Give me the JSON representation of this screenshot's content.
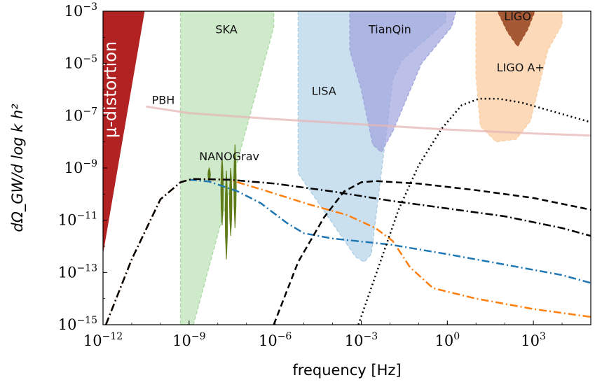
{
  "chart_data": {
    "type": "line",
    "xlabel": "frequency [Hz]",
    "ylabel": "dΩ_GW/d log k h²",
    "x_scale": "log",
    "y_scale": "log",
    "xlim": [
      1e-12,
      100000.0
    ],
    "ylim": [
      1e-15,
      0.001
    ],
    "x_ticks": [
      {
        "base": "10",
        "exp": "−12",
        "value": 1e-12
      },
      {
        "base": "10",
        "exp": "−9",
        "value": 1e-09
      },
      {
        "base": "10",
        "exp": "−6",
        "value": 1e-06
      },
      {
        "base": "10",
        "exp": "−3",
        "value": 0.001
      },
      {
        "base": "10",
        "exp": "0",
        "value": 1
      },
      {
        "base": "10",
        "exp": "3",
        "value": 1000.0
      }
    ],
    "y_ticks": [
      {
        "base": "10",
        "exp": "−3",
        "value": 0.001
      },
      {
        "base": "10",
        "exp": "−5",
        "value": 1e-05
      },
      {
        "base": "10",
        "exp": "−7",
        "value": 1e-07
      },
      {
        "base": "10",
        "exp": "−9",
        "value": 1e-09
      },
      {
        "base": "10",
        "exp": "−11",
        "value": 1e-11
      },
      {
        "base": "10",
        "exp": "−13",
        "value": 1e-13
      },
      {
        "base": "10",
        "exp": "−15",
        "value": 1e-15
      }
    ],
    "regions": [
      {
        "label": "μ-distortion",
        "color": "#b22222",
        "opacity": 1.0,
        "points": [
          [
            -12,
            -3
          ],
          [
            -10.55,
            -3
          ],
          [
            -12,
            -12.3
          ]
        ]
      },
      {
        "label": "SKA",
        "color": "#a8d8a0",
        "opacity": 0.55,
        "points": [
          [
            -9.3,
            -3
          ],
          [
            -6.05,
            -3
          ],
          [
            -6.05,
            -3.6
          ],
          [
            -8.85,
            -15
          ],
          [
            -9.3,
            -15
          ]
        ]
      },
      {
        "label": "LISA",
        "color": "#a8cce4",
        "opacity": 0.6,
        "points": [
          [
            -5.2,
            -3
          ],
          [
            -0.05,
            -3
          ],
          [
            -0.05,
            -3.4
          ],
          [
            -1.6,
            -4.9
          ],
          [
            -1.9,
            -5.6
          ],
          [
            -2.65,
            -12.3
          ],
          [
            -2.9,
            -12.6
          ],
          [
            -3.2,
            -12.4
          ],
          [
            -5.2,
            -9.2
          ]
        ]
      },
      {
        "label": "TianQin",
        "color": "#9fa4dd",
        "opacity": 0.7,
        "points": [
          [
            -3.4,
            -3
          ],
          [
            0.3,
            -3
          ],
          [
            0.15,
            -3.6
          ],
          [
            -0.9,
            -5.0
          ],
          [
            -1.9,
            -7.6
          ],
          [
            -2.3,
            -8.4
          ],
          [
            -2.6,
            -8.1
          ],
          [
            -3.0,
            -6.0
          ],
          [
            -3.4,
            -4.5
          ]
        ]
      },
      {
        "label": "LIGO A+",
        "color": "#fbcfa6",
        "opacity": 0.8,
        "points": [
          [
            1.0,
            -3
          ],
          [
            4.0,
            -3
          ],
          [
            4.0,
            -3.5
          ],
          [
            3.5,
            -4.5
          ],
          [
            2.9,
            -7.2
          ],
          [
            2.4,
            -7.9
          ],
          [
            1.7,
            -8.0
          ],
          [
            1.15,
            -7.4
          ],
          [
            1.0,
            -5.5
          ]
        ]
      },
      {
        "label": "LIGO",
        "color": "#a0522d",
        "opacity": 0.95,
        "points": [
          [
            1.75,
            -3
          ],
          [
            3.05,
            -3
          ],
          [
            2.8,
            -3.7
          ],
          [
            2.45,
            -4.35
          ],
          [
            2.1,
            -3.8
          ]
        ]
      }
    ],
    "nanograv": {
      "label": "NANOGrav",
      "color": "#5f7a18",
      "bars": [
        {
          "x": -8.3,
          "ymin": -9.5,
          "ymax": -9.0
        },
        {
          "x": -7.85,
          "ymin": -11.2,
          "ymax": -8.6
        },
        {
          "x": -7.7,
          "ymin": -12.5,
          "ymax": -9.1
        },
        {
          "x": -7.55,
          "ymin": -11.6,
          "ymax": -9.0
        },
        {
          "x": -7.4,
          "ymin": -11.3,
          "ymax": -8.1
        }
      ]
    },
    "series": [
      {
        "label": "PBH",
        "color": "#e6b5b5",
        "style": "solid",
        "width": 3,
        "points": [
          [
            -10.5,
            -6.65
          ],
          [
            -9,
            -6.9
          ],
          [
            -6,
            -7.13
          ],
          [
            -3,
            -7.33
          ],
          [
            0,
            -7.53
          ],
          [
            3,
            -7.68
          ],
          [
            5,
            -7.76
          ]
        ]
      },
      {
        "color": "#ff7f0e",
        "style": "dashdot",
        "width": 2.5,
        "points": [
          [
            -11.9,
            -15
          ],
          [
            -11.0,
            -12.5
          ],
          [
            -10.0,
            -10.2
          ],
          [
            -9.3,
            -9.55
          ],
          [
            -8.9,
            -9.42
          ],
          [
            -7.6,
            -9.45
          ],
          [
            -6.4,
            -9.85
          ],
          [
            -4.8,
            -10.4
          ],
          [
            -3.5,
            -10.8
          ],
          [
            -2.5,
            -11.3
          ],
          [
            -1.9,
            -11.8
          ],
          [
            -1.3,
            -12.8
          ],
          [
            -0.5,
            -13.6
          ],
          [
            1,
            -14.0
          ],
          [
            3,
            -14.4
          ],
          [
            5,
            -14.7
          ]
        ]
      },
      {
        "color": "#1f77b4",
        "style": "dashdot",
        "width": 2.5,
        "points": [
          [
            -9.0,
            -9.45
          ],
          [
            -8.3,
            -9.52
          ],
          [
            -7.3,
            -9.9
          ],
          [
            -6.5,
            -10.35
          ],
          [
            -5.6,
            -11.1
          ],
          [
            -5.0,
            -11.5
          ],
          [
            -4.0,
            -11.7
          ],
          [
            -2.0,
            -11.93
          ],
          [
            0,
            -12.3
          ],
          [
            2,
            -12.7
          ],
          [
            4,
            -13.1
          ],
          [
            5,
            -13.4
          ]
        ]
      },
      {
        "color": "#000000",
        "style": "dashdot",
        "width": 2.5,
        "points": [
          [
            -11.9,
            -15
          ],
          [
            -11.0,
            -12.5
          ],
          [
            -10.0,
            -10.2
          ],
          [
            -9.3,
            -9.55
          ],
          [
            -8.9,
            -9.42
          ],
          [
            -7.6,
            -9.45
          ],
          [
            -6.0,
            -9.6
          ],
          [
            -4.0,
            -9.9
          ],
          [
            -2.0,
            -10.25
          ],
          [
            0,
            -10.55
          ],
          [
            2,
            -10.85
          ],
          [
            4,
            -11.3
          ],
          [
            5,
            -11.6
          ]
        ]
      },
      {
        "color": "#000000",
        "style": "dashed",
        "width": 2.5,
        "points": [
          [
            -6.05,
            -15
          ],
          [
            -5.2,
            -12.6
          ],
          [
            -4.3,
            -10.9
          ],
          [
            -3.6,
            -9.9
          ],
          [
            -3.0,
            -9.55
          ],
          [
            -2.5,
            -9.5
          ],
          [
            -1.0,
            -9.6
          ],
          [
            1.0,
            -9.85
          ],
          [
            3.0,
            -10.15
          ],
          [
            5,
            -10.6
          ]
        ]
      },
      {
        "color": "#000000",
        "style": "dotted",
        "width": 2.5,
        "points": [
          [
            -3.1,
            -15
          ],
          [
            -2.4,
            -12.8
          ],
          [
            -1.7,
            -10.6
          ],
          [
            -1.0,
            -8.9
          ],
          [
            -0.2,
            -7.5
          ],
          [
            0.5,
            -6.6
          ],
          [
            1.1,
            -6.35
          ],
          [
            1.8,
            -6.35
          ],
          [
            2.6,
            -6.5
          ],
          [
            3.4,
            -6.75
          ],
          [
            4.2,
            -7.0
          ],
          [
            5,
            -7.25
          ]
        ]
      }
    ],
    "annotations": [
      {
        "text": "μ-distortion",
        "x": -11.55,
        "y": -6.0,
        "rotate": -90,
        "color": "#ffffff",
        "size": 24
      },
      {
        "text": "SKA",
        "x": -7.7,
        "y": -3.85,
        "color": "#111111",
        "size": 16
      },
      {
        "text": "TianQin",
        "x": -2.0,
        "y": -3.85,
        "color": "#111111",
        "size": 16
      },
      {
        "text": "LISA",
        "x": -4.3,
        "y": -6.2,
        "color": "#111111",
        "size": 16
      },
      {
        "text": "LIGO",
        "x": 2.45,
        "y": -3.35,
        "color": "#111111",
        "size": 16
      },
      {
        "text": "LIGO A+",
        "x": 2.55,
        "y": -5.3,
        "color": "#111111",
        "size": 16
      },
      {
        "text": "PBH",
        "x": -9.9,
        "y": -6.55,
        "color": "#111111",
        "size": 16
      },
      {
        "text": "NANOGrav",
        "x": -7.6,
        "y": -8.7,
        "color": "#111111",
        "size": 16
      }
    ]
  }
}
